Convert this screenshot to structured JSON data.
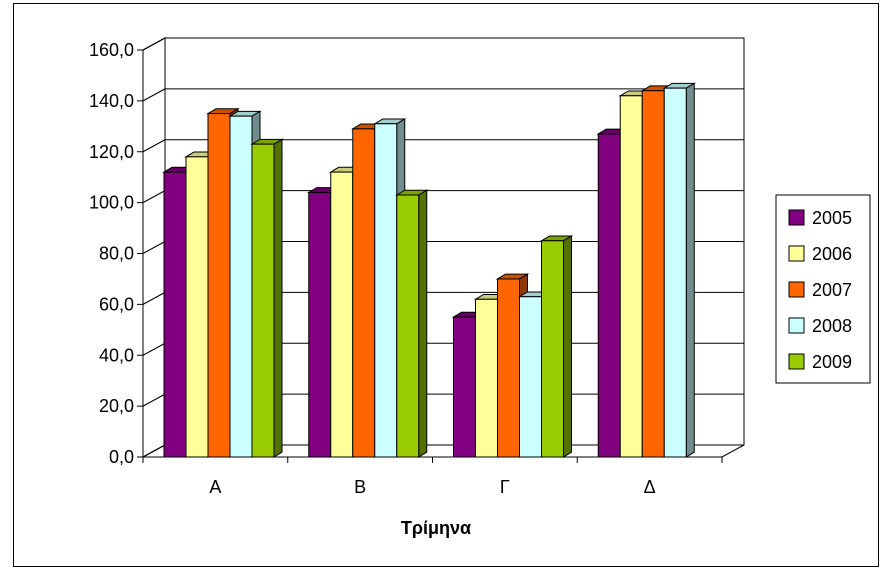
{
  "chart_data": {
    "type": "bar",
    "style": "3d-clustered-column",
    "title": "",
    "xlabel": "Τρίμηνα",
    "ylabel": "",
    "categories": [
      "Α",
      "Β",
      "Γ",
      "Δ"
    ],
    "ylim": [
      0,
      160
    ],
    "y_ticks": [
      "0,0",
      "20,0",
      "40,0",
      "60,0",
      "80,0",
      "100,0",
      "120,0",
      "140,0",
      "160,0"
    ],
    "y_tick_values": [
      0,
      20,
      40,
      60,
      80,
      100,
      120,
      140,
      160
    ],
    "grid": true,
    "legend_position": "right",
    "series": [
      {
        "name": "2005",
        "color": "#800080",
        "values": [
          112,
          104,
          55,
          127
        ]
      },
      {
        "name": "2006",
        "color": "#FFFF99",
        "values": [
          118,
          112,
          62,
          142
        ]
      },
      {
        "name": "2007",
        "color": "#FF6600",
        "values": [
          135,
          129,
          70,
          144
        ]
      },
      {
        "name": "2008",
        "color": "#CCFFFF",
        "values": [
          134,
          131,
          63,
          145
        ]
      },
      {
        "name": "2009",
        "color": "#99CC00",
        "values": [
          123,
          103,
          85,
          null
        ]
      }
    ]
  }
}
